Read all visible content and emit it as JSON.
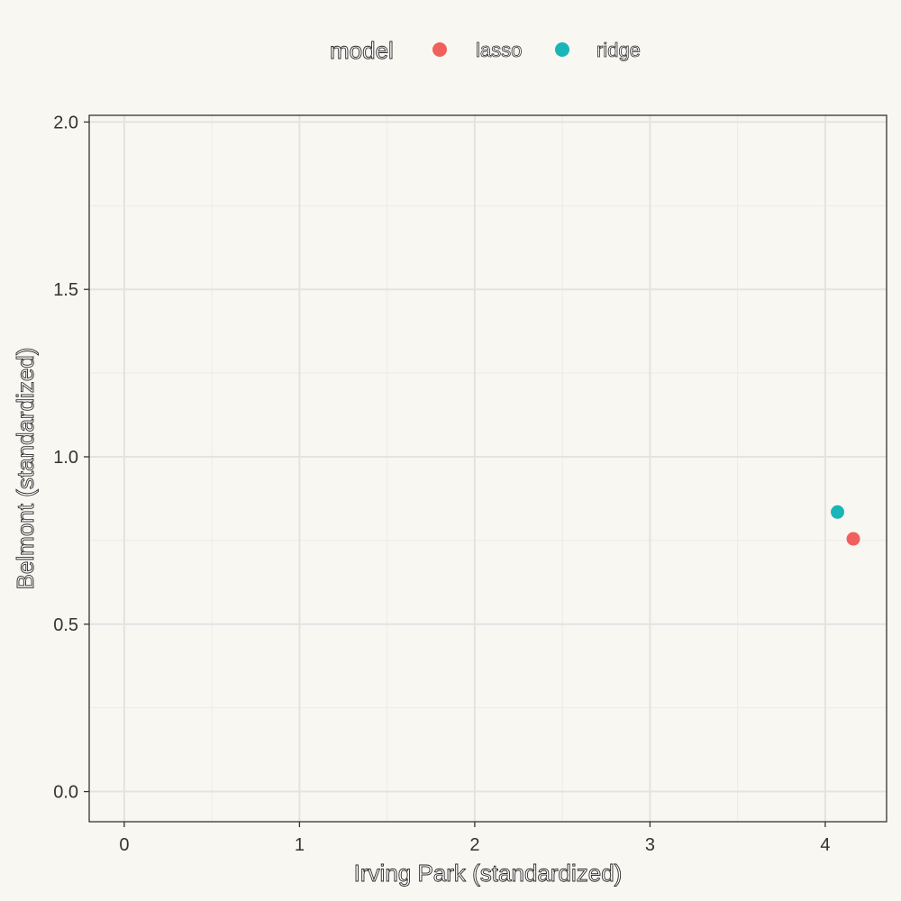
{
  "chart_data": {
    "type": "scatter",
    "xlabel": "Irving Park (standardized)",
    "ylabel": "Belmont (standardized)",
    "xlim": [
      -0.2,
      4.35
    ],
    "ylim": [
      -0.09,
      2.02
    ],
    "xticks": [
      0,
      1,
      2,
      3,
      4
    ],
    "xtick_labels": [
      "0",
      "1",
      "2",
      "3",
      "4"
    ],
    "yticks": [
      0.0,
      0.5,
      1.0,
      1.5,
      2.0
    ],
    "ytick_labels": [
      "0.0",
      "0.5",
      "1.0",
      "1.5",
      "2.0"
    ],
    "grid": true,
    "legend": {
      "title": "model",
      "position": "top"
    },
    "series": [
      {
        "name": "lasso",
        "color": "#f0605e",
        "points": [
          {
            "x": 4.16,
            "y": 0.755
          }
        ]
      },
      {
        "name": "ridge",
        "color": "#1ab5b8",
        "points": [
          {
            "x": 4.07,
            "y": 0.835
          }
        ]
      }
    ]
  }
}
